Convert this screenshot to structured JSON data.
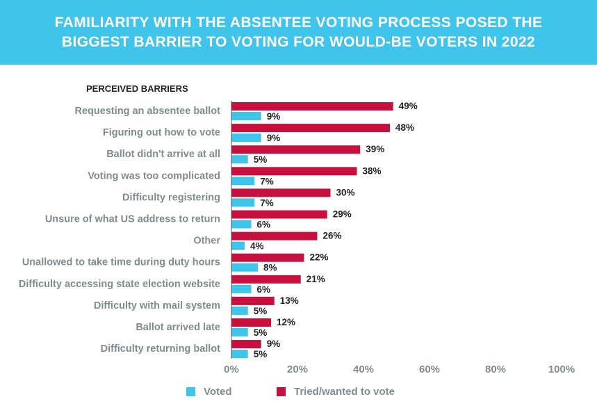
{
  "banner": {
    "title": "FAMILIARITY WITH THE ABSENTEE VOTING PROCESS POSED THE\nBIGGEST BARRIER TO VOTING FOR WOULD-BE VOTERS IN 2022"
  },
  "colors": {
    "banner": "#3fc4ec",
    "voted": "#3fc4ec",
    "tried": "#c8103e"
  },
  "chart_data": {
    "type": "bar",
    "orientation": "horizontal",
    "category_header": "PERCEIVED BARRIERS",
    "categories": [
      "Requesting an absentee ballot",
      "Figuring out how to vote",
      "Ballot didn't arrive at all",
      "Voting was too complicated",
      "Difficulty registering",
      "Unsure of what US address to return",
      "Other",
      "Unallowed to take time during duty hours",
      "Difficulty accessing state election website",
      "Difficulty with mail system",
      "Ballot arrived late",
      "Difficulty returning ballot"
    ],
    "series": [
      {
        "name": "Tried/wanted to vote",
        "color": "#c8103e",
        "values": [
          49,
          48,
          39,
          38,
          30,
          29,
          26,
          22,
          21,
          13,
          12,
          9
        ]
      },
      {
        "name": "Voted",
        "color": "#3fc4ec",
        "values": [
          9,
          9,
          5,
          7,
          7,
          6,
          4,
          8,
          6,
          5,
          5,
          5
        ]
      }
    ],
    "value_suffix": "%",
    "xlim": [
      0,
      100
    ],
    "xticks": [
      "0%",
      "20%",
      "40%",
      "60%",
      "80%",
      "100%"
    ],
    "grid": false,
    "legend": {
      "placement": "bottom-left",
      "order": [
        "Voted",
        "Tried/wanted to vote"
      ]
    }
  }
}
